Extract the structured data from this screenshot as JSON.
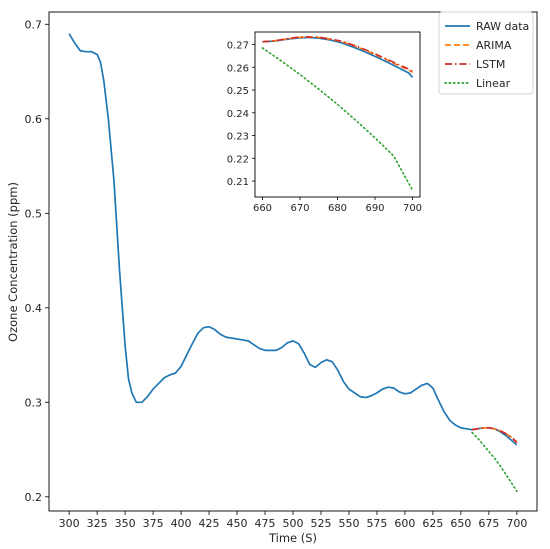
{
  "chart_data": [
    {
      "type": "line",
      "role": "main",
      "title": "",
      "xlabel": "Time (S)",
      "ylabel": "Ozone Concentration (ppm)",
      "xlim": [
        282,
        718
      ],
      "ylim": [
        0.185,
        0.713
      ],
      "xticks": [
        300,
        325,
        350,
        375,
        400,
        425,
        450,
        475,
        500,
        525,
        550,
        575,
        600,
        625,
        650,
        675,
        700
      ],
      "yticks": [
        0.2,
        0.3,
        0.4,
        0.5,
        0.6,
        0.7
      ],
      "ytick_labels": [
        "0.2",
        "0.3",
        "0.4",
        "0.5",
        "0.6",
        "0.7"
      ],
      "grid": false,
      "legend_position": "top-right",
      "series": [
        {
          "name": "RAW data",
          "color": "#1f77b4",
          "style": "solid",
          "points": [
            [
              300,
              0.69
            ],
            [
              305,
              0.68
            ],
            [
              310,
              0.672
            ],
            [
              315,
              0.671
            ],
            [
              320,
              0.671
            ],
            [
              325,
              0.668
            ],
            [
              328,
              0.66
            ],
            [
              331,
              0.64
            ],
            [
              335,
              0.6
            ],
            [
              340,
              0.535
            ],
            [
              345,
              0.44
            ],
            [
              350,
              0.36
            ],
            [
              353,
              0.325
            ],
            [
              356,
              0.31
            ],
            [
              360,
              0.3
            ],
            [
              365,
              0.3
            ],
            [
              370,
              0.306
            ],
            [
              375,
              0.314
            ],
            [
              380,
              0.32
            ],
            [
              385,
              0.326
            ],
            [
              390,
              0.329
            ],
            [
              395,
              0.331
            ],
            [
              400,
              0.338
            ],
            [
              405,
              0.35
            ],
            [
              410,
              0.362
            ],
            [
              415,
              0.373
            ],
            [
              420,
              0.379
            ],
            [
              425,
              0.38
            ],
            [
              430,
              0.377
            ],
            [
              435,
              0.372
            ],
            [
              440,
              0.369
            ],
            [
              445,
              0.368
            ],
            [
              450,
              0.367
            ],
            [
              455,
              0.366
            ],
            [
              460,
              0.365
            ],
            [
              465,
              0.361
            ],
            [
              470,
              0.357
            ],
            [
              475,
              0.355
            ],
            [
              480,
              0.355
            ],
            [
              485,
              0.355
            ],
            [
              490,
              0.358
            ],
            [
              495,
              0.363
            ],
            [
              500,
              0.365
            ],
            [
              505,
              0.362
            ],
            [
              510,
              0.352
            ],
            [
              515,
              0.34
            ],
            [
              520,
              0.337
            ],
            [
              525,
              0.342
            ],
            [
              530,
              0.345
            ],
            [
              535,
              0.343
            ],
            [
              540,
              0.334
            ],
            [
              545,
              0.322
            ],
            [
              550,
              0.314
            ],
            [
              555,
              0.31
            ],
            [
              560,
              0.306
            ],
            [
              565,
              0.305
            ],
            [
              570,
              0.307
            ],
            [
              575,
              0.31
            ],
            [
              580,
              0.314
            ],
            [
              585,
              0.316
            ],
            [
              590,
              0.315
            ],
            [
              595,
              0.311
            ],
            [
              600,
              0.309
            ],
            [
              605,
              0.31
            ],
            [
              610,
              0.314
            ],
            [
              615,
              0.318
            ],
            [
              620,
              0.32
            ],
            [
              625,
              0.315
            ],
            [
              630,
              0.302
            ],
            [
              635,
              0.29
            ],
            [
              640,
              0.281
            ],
            [
              645,
              0.276
            ],
            [
              650,
              0.273
            ],
            [
              655,
              0.272
            ],
            [
              660,
              0.271
            ],
            [
              665,
              0.272
            ],
            [
              670,
              0.273
            ],
            [
              675,
              0.273
            ],
            [
              680,
              0.272
            ],
            [
              685,
              0.269
            ],
            [
              690,
              0.265
            ],
            [
              695,
              0.26
            ],
            [
              700,
              0.255
            ]
          ]
        },
        {
          "name": "ARIMA",
          "color": "#ff7f0e",
          "style": "dashed",
          "points": [
            [
              660,
              0.271
            ],
            [
              665,
              0.272
            ],
            [
              670,
              0.273
            ],
            [
              675,
              0.273
            ],
            [
              680,
              0.272
            ],
            [
              685,
              0.27
            ],
            [
              690,
              0.267
            ],
            [
              695,
              0.263
            ],
            [
              700,
              0.257
            ]
          ]
        },
        {
          "name": "LSTM",
          "color": "#d62728",
          "style": "dashdot",
          "points": [
            [
              660,
              0.271
            ],
            [
              665,
              0.272
            ],
            [
              670,
              0.273
            ],
            [
              675,
              0.273
            ],
            [
              680,
              0.272
            ],
            [
              685,
              0.27
            ],
            [
              690,
              0.267
            ],
            [
              695,
              0.263
            ],
            [
              700,
              0.258
            ]
          ]
        },
        {
          "name": "Linear",
          "color": "#2ca02c",
          "style": "dotted",
          "points": [
            [
              660,
              0.268
            ],
            [
              665,
              0.262
            ],
            [
              670,
              0.255
            ],
            [
              675,
              0.248
            ],
            [
              680,
              0.241
            ],
            [
              685,
              0.233
            ],
            [
              690,
              0.224
            ],
            [
              695,
              0.215
            ],
            [
              700,
              0.206
            ]
          ]
        }
      ]
    },
    {
      "type": "line",
      "role": "inset",
      "xlim": [
        658,
        702
      ],
      "ylim": [
        0.203,
        0.2755
      ],
      "xticks": [
        660,
        670,
        680,
        690,
        700
      ],
      "yticks": [
        0.21,
        0.22,
        0.23,
        0.24,
        0.25,
        0.26,
        0.27
      ],
      "ytick_labels": [
        "0.21",
        "0.22",
        "0.23",
        "0.24",
        "0.25",
        "0.26",
        "0.27"
      ],
      "grid": false,
      "series": [
        {
          "name": "RAW data",
          "color": "#1f77b4",
          "style": "solid",
          "points": [
            [
              660,
              0.2712
            ],
            [
              663,
              0.2715
            ],
            [
              666,
              0.2722
            ],
            [
              669,
              0.2728
            ],
            [
              672,
              0.2731
            ],
            [
              675,
              0.2728
            ],
            [
              678,
              0.272
            ],
            [
              681,
              0.2708
            ],
            [
              684,
              0.269
            ],
            [
              687,
              0.267
            ],
            [
              690,
              0.2648
            ],
            [
              693,
              0.2625
            ],
            [
              696,
              0.26
            ],
            [
              699,
              0.2575
            ],
            [
              700,
              0.2555
            ]
          ]
        },
        {
          "name": "ARIMA",
          "color": "#ff7f0e",
          "style": "dashed",
          "points": [
            [
              660,
              0.2712
            ],
            [
              663,
              0.2716
            ],
            [
              666,
              0.2723
            ],
            [
              669,
              0.273
            ],
            [
              672,
              0.2733
            ],
            [
              675,
              0.2731
            ],
            [
              678,
              0.2724
            ],
            [
              681,
              0.2713
            ],
            [
              684,
              0.2697
            ],
            [
              687,
              0.2678
            ],
            [
              690,
              0.2656
            ],
            [
              693,
              0.2634
            ],
            [
              696,
              0.261
            ],
            [
              699,
              0.2588
            ],
            [
              700,
              0.2578
            ]
          ]
        },
        {
          "name": "LSTM",
          "color": "#d62728",
          "style": "dashdot",
          "points": [
            [
              660,
              0.2712
            ],
            [
              663,
              0.2716
            ],
            [
              666,
              0.2724
            ],
            [
              669,
              0.2731
            ],
            [
              672,
              0.2734
            ],
            [
              675,
              0.2732
            ],
            [
              678,
              0.2725
            ],
            [
              681,
              0.2715
            ],
            [
              684,
              0.2699
            ],
            [
              687,
              0.268
            ],
            [
              690,
              0.2659
            ],
            [
              693,
              0.2637
            ],
            [
              696,
              0.2614
            ],
            [
              699,
              0.2592
            ],
            [
              700,
              0.2582
            ]
          ]
        },
        {
          "name": "Linear",
          "color": "#2ca02c",
          "style": "dotted",
          "points": [
            [
              660,
              0.2685
            ],
            [
              665,
              0.2628
            ],
            [
              670,
              0.2568
            ],
            [
              675,
              0.2504
            ],
            [
              680,
              0.2437
            ],
            [
              685,
              0.2365
            ],
            [
              690,
              0.229
            ],
            [
              695,
              0.221
            ],
            [
              700,
              0.206
            ]
          ]
        }
      ]
    }
  ]
}
